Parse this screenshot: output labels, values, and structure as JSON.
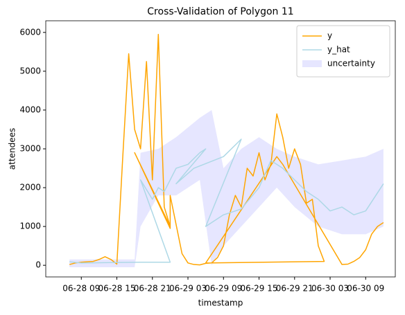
{
  "chart_data": {
    "type": "line",
    "title": "Cross-Validation of Polygon 11",
    "xlabel": "timestamp",
    "ylabel": "attendees",
    "xlim": [
      "06-28 03",
      "06-30 14"
    ],
    "xticks": [
      "06-28 09",
      "06-28 15",
      "06-28 21",
      "06-29 03",
      "06-29 09",
      "06-29 15",
      "06-29 21",
      "06-30 03",
      "06-30 09"
    ],
    "ylim": [
      -300,
      6300
    ],
    "yticks": [
      0,
      1000,
      2000,
      3000,
      4000,
      5000,
      6000
    ],
    "legend": "upper right",
    "series": [
      {
        "name": "y",
        "color": "#ffa500",
        "x": [
          "06-28 07",
          "06-28 08",
          "06-28 09",
          "06-28 10",
          "06-28 11",
          "06-28 12",
          "06-28 13",
          "06-28 14",
          "06-28 15",
          "06-28 16",
          "06-28 17",
          "06-28 18",
          "06-28 19",
          "06-28 20",
          "06-28 21",
          "06-28 22",
          "06-28 23",
          "06-29 00",
          "06-28 18",
          "06-29 00",
          "06-29 00",
          "06-29 02",
          "06-29 03",
          "06-29 04",
          "06-29 05",
          "06-29 06",
          "06-29 07",
          "06-29 08",
          "06-29 09",
          "06-29 10",
          "06-29 11",
          "06-29 12",
          "06-29 13",
          "06-29 14",
          "06-29 15",
          "06-29 16",
          "06-29 17",
          "06-29 18",
          "06-29 19",
          "06-29 20",
          "06-29 21",
          "06-29 22",
          "06-29 23",
          "06-30 00",
          "06-30 01",
          "06-30 02",
          "06-29 06",
          "06-29 18",
          "06-29 19",
          "06-30 05",
          "06-30 06",
          "06-30 07",
          "06-30 08",
          "06-30 09",
          "06-30 10",
          "06-30 11",
          "06-30 12"
        ],
        "values": [
          20,
          60,
          80,
          90,
          100,
          150,
          220,
          150,
          30,
          2800,
          5450,
          3500,
          3000,
          5250,
          2200,
          5950,
          1500,
          1000,
          2900,
          950,
          1800,
          300,
          60,
          20,
          10,
          50,
          60,
          200,
          500,
          1300,
          1800,
          1500,
          2500,
          2300,
          2900,
          2200,
          2600,
          3900,
          3300,
          2500,
          3000,
          2600,
          1600,
          1700,
          500,
          100,
          60,
          2800,
          2600,
          20,
          30,
          100,
          200,
          400,
          800,
          1000,
          1100
        ]
      },
      {
        "name": "y_hat",
        "color": "#add8e6",
        "x": [
          "06-28 07",
          "06-28 09",
          "06-28 14",
          "06-28 19",
          "06-29 00",
          "06-28 19",
          "06-28 21",
          "06-28 22",
          "06-28 23",
          "06-29 00",
          "06-29 01",
          "06-29 03",
          "06-29 05",
          "06-29 06",
          "06-29 01",
          "06-29 04",
          "06-29 09",
          "06-29 12",
          "06-29 06",
          "06-29 09",
          "06-29 12",
          "06-29 15",
          "06-29 17",
          "06-29 19",
          "06-29 21",
          "06-29 23",
          "06-30 01",
          "06-30 03",
          "06-30 05",
          "06-30 07",
          "06-30 09",
          "06-30 12"
        ],
        "values": [
          90,
          60,
          70,
          80,
          80,
          2200,
          1700,
          2000,
          1900,
          2200,
          2500,
          2600,
          2900,
          3000,
          2100,
          2500,
          2800,
          3250,
          1000,
          1300,
          1450,
          2000,
          2700,
          2500,
          2200,
          1900,
          1700,
          1400,
          1500,
          1300,
          1400,
          2100
        ]
      }
    ],
    "band": {
      "name": "uncertainty",
      "color": "#e6e6ff",
      "x": [
        "06-28 07",
        "06-28 13",
        "06-28 18",
        "06-28 19",
        "06-28 22",
        "06-29 01",
        "06-29 05",
        "06-29 07",
        "06-29 09",
        "06-29 12",
        "06-29 15",
        "06-29 18",
        "06-29 21",
        "06-30 01",
        "06-30 05",
        "06-30 09",
        "06-30 12"
      ],
      "lower": [
        -50,
        -50,
        -50,
        1000,
        1800,
        1800,
        2200,
        0,
        500,
        1000,
        1500,
        2000,
        1500,
        1000,
        800,
        800,
        1000
      ],
      "upper": [
        150,
        150,
        150,
        2900,
        3000,
        3300,
        3800,
        4000,
        2500,
        3000,
        3300,
        3000,
        2800,
        2600,
        2700,
        2800,
        3000
      ]
    }
  }
}
